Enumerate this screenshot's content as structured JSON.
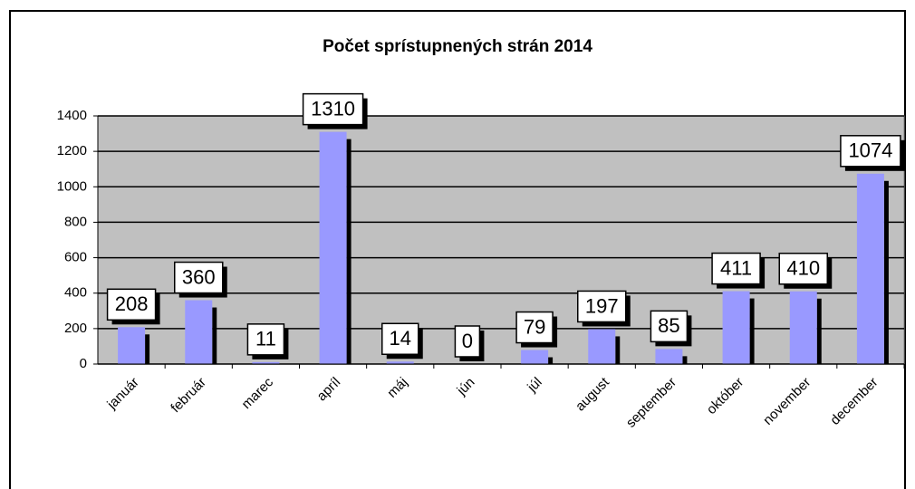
{
  "chart_data": {
    "type": "bar",
    "title": "Počet sprístupnených strán 2014",
    "categories": [
      "január",
      "február",
      "marec",
      "apríl",
      "máj",
      "jún",
      "júl",
      "august",
      "september",
      "október",
      "november",
      "december"
    ],
    "values": [
      208,
      360,
      11,
      1310,
      14,
      0,
      79,
      197,
      85,
      411,
      410,
      1074
    ],
    "color": "#9999ff",
    "ylim": [
      0,
      1400
    ],
    "yticks": [
      0,
      200,
      400,
      600,
      800,
      1000,
      1200,
      1400
    ],
    "grid": true
  }
}
